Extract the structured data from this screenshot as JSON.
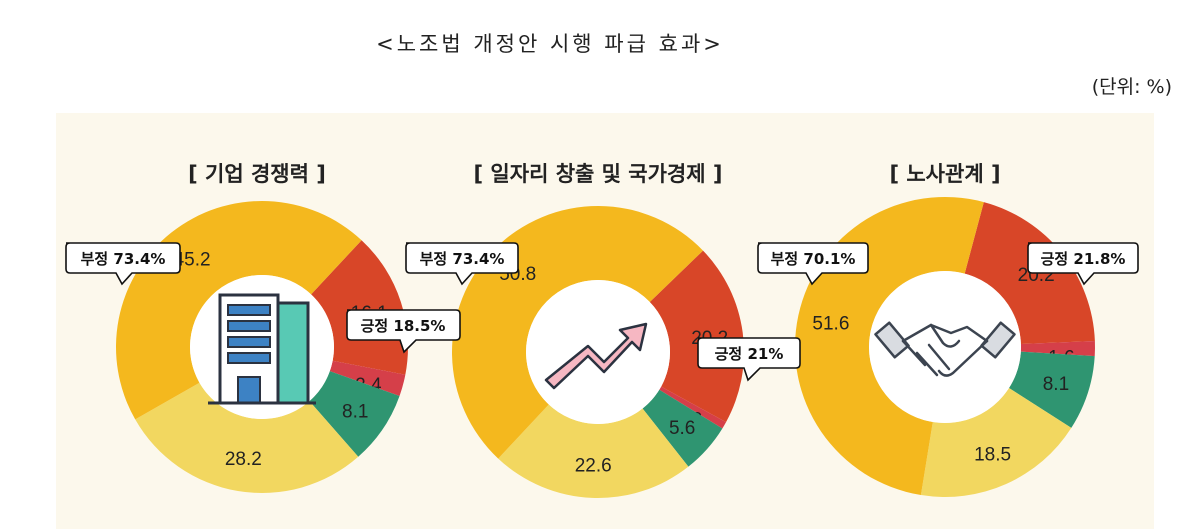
{
  "title": "<노조법 개정안 시행 파급 효과>",
  "unit": "(단위: %)",
  "colors": {
    "very_negative": "#f4b81e",
    "somewhat_negative": "#f2d760",
    "neutral": "#d53f49",
    "somewhat_positive": "#2f9571",
    "very_positive": "#d84628",
    "background": "#fcf8ec"
  },
  "chart_data": [
    {
      "type": "pie",
      "title": "[ 기업 경쟁력 ]",
      "icon": "building-icon",
      "segments": [
        {
          "value": 16.1,
          "label": "16.1",
          "color": "#d84628"
        },
        {
          "value": 2.4,
          "label": "2.4",
          "color": "#d53f49"
        },
        {
          "value": 8.1,
          "label": "8.1",
          "color": "#2f9571"
        },
        {
          "value": 28.2,
          "label": "28.2",
          "color": "#f2d760"
        },
        {
          "value": 45.2,
          "label": "45.2",
          "color": "#f4b81e"
        }
      ],
      "callouts": {
        "negative": "부정 73.4%",
        "positive": "긍정 18.5%"
      }
    },
    {
      "type": "pie",
      "title": "[ 일자리 창출 및 국가경제 ]",
      "icon": "rising-arrow-icon",
      "segments": [
        {
          "value": 20.2,
          "label": "20.2",
          "color": "#d84628"
        },
        {
          "value": 0.8,
          "label": "0.8",
          "color": "#d53f49"
        },
        {
          "value": 5.6,
          "label": "5.6",
          "color": "#2f9571"
        },
        {
          "value": 22.6,
          "label": "22.6",
          "color": "#f2d760"
        },
        {
          "value": 50.8,
          "label": "50.8",
          "color": "#f4b81e"
        }
      ],
      "callouts": {
        "negative": "부정 73.4%",
        "positive": "긍정 21%"
      }
    },
    {
      "type": "pie",
      "title": "[ 노사관계 ]",
      "icon": "handshake-icon",
      "segments": [
        {
          "value": 20.2,
          "label": "20.2",
          "color": "#d84628"
        },
        {
          "value": 1.6,
          "label": "1.6",
          "color": "#d53f49"
        },
        {
          "value": 8.1,
          "label": "8.1",
          "color": "#2f9571"
        },
        {
          "value": 18.5,
          "label": "18.5",
          "color": "#f2d760"
        },
        {
          "value": 51.6,
          "label": "51.6",
          "color": "#f4b81e"
        }
      ],
      "callouts": {
        "negative": "부정 70.1%",
        "positive": "긍정 21.8%"
      }
    }
  ]
}
